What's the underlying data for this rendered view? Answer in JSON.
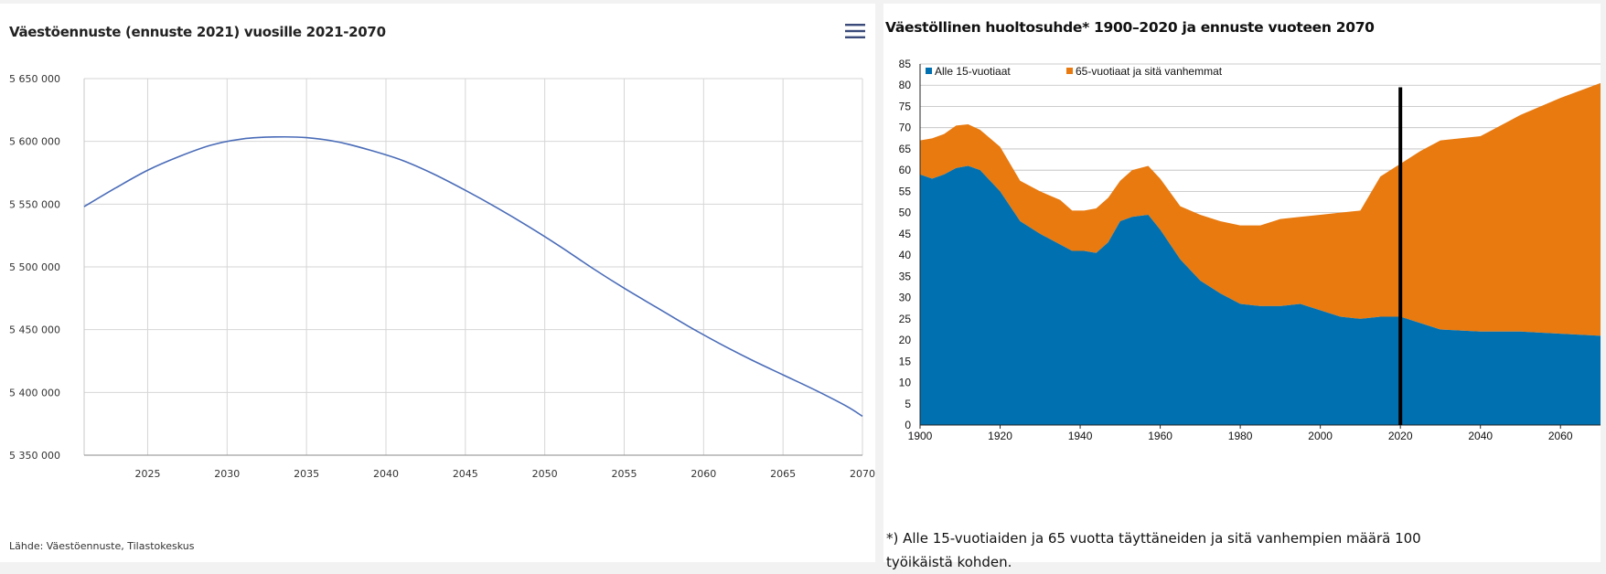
{
  "left_panel": {
    "title": "Väestöennuste (ennuste 2021) vuosille 2021-2070",
    "source": "Lähde: Väestöennuste, Tilastokeskus",
    "menu_icon": "hamburger-menu-icon"
  },
  "right_panel": {
    "title": "Väestöllinen huoltosuhde* 1900–2020 ja ennuste vuoteen 2070",
    "footnote_line1": "*) Alle 15-vuotiaiden ja 65 vuotta täyttäneiden ja sitä vanhempien määrä 100",
    "footnote_line2": "työikäistä kohden."
  },
  "chart_data": [
    {
      "type": "line",
      "title": "Väestöennuste (ennuste 2021) vuosille 2021-2070",
      "xlabel": "",
      "ylabel": "",
      "xlim": [
        2021,
        2070
      ],
      "ylim": [
        5350000,
        5650000
      ],
      "x_ticks": [
        2025,
        2030,
        2035,
        2040,
        2045,
        2050,
        2055,
        2060,
        2065,
        2070
      ],
      "y_ticks": [
        5350000,
        5400000,
        5450000,
        5500000,
        5550000,
        5600000,
        5650000
      ],
      "y_tick_labels": [
        "5 350 000",
        "5 400 000",
        "5 450 000",
        "5 500 000",
        "5 550 000",
        "5 600 000",
        "5 650 000"
      ],
      "grid": true,
      "line_color": "#4a6cb8",
      "series": [
        {
          "x": [
            2021,
            2023,
            2025,
            2027,
            2029,
            2031,
            2033,
            2035,
            2037,
            2039,
            2041,
            2043,
            2045,
            2047,
            2049,
            2051,
            2053,
            2055,
            2057,
            2059,
            2061,
            2063,
            2065,
            2067,
            2069,
            2070
          ],
          "values": [
            5548000,
            5563000,
            5577000,
            5588000,
            5597000,
            5602000,
            5603500,
            5603000,
            5599500,
            5593000,
            5585000,
            5574000,
            5561000,
            5547000,
            5532000,
            5516000,
            5499000,
            5483000,
            5468000,
            5453000,
            5439000,
            5426000,
            5414000,
            5402000,
            5389000,
            5381000
          ]
        }
      ]
    },
    {
      "type": "area",
      "title": "Väestöllinen huoltosuhde* 1900–2020 ja ennuste vuoteen 2070",
      "xlabel": "",
      "ylabel": "",
      "xlim": [
        1900,
        2070
      ],
      "ylim": [
        0,
        85
      ],
      "x_ticks": [
        1900,
        1920,
        1940,
        1960,
        1980,
        2000,
        2020,
        2040,
        2060
      ],
      "y_ticks": [
        0,
        5,
        10,
        15,
        20,
        25,
        30,
        35,
        40,
        45,
        50,
        55,
        60,
        65,
        70,
        75,
        80,
        85
      ],
      "legend_position": "top-left",
      "stacked": true,
      "vertical_marker_x": 2020,
      "series": [
        {
          "name": "Alle 15-vuotiaat",
          "color": "#0070b0",
          "x": [
            1900,
            1903,
            1906,
            1909,
            1912,
            1915,
            1920,
            1925,
            1930,
            1935,
            1938,
            1941,
            1944,
            1947,
            1950,
            1953,
            1957,
            1960,
            1965,
            1970,
            1975,
            1980,
            1985,
            1990,
            1995,
            2000,
            2005,
            2010,
            2015,
            2020,
            2025,
            2030,
            2040,
            2050,
            2060,
            2070
          ],
          "values": [
            59,
            58,
            59,
            60.5,
            61,
            60,
            55,
            48,
            45,
            42.5,
            41,
            41,
            40.5,
            43,
            48,
            49,
            49.5,
            46,
            39,
            34,
            31,
            28.5,
            28,
            28,
            28.5,
            27,
            25.5,
            25,
            25.5,
            25.5,
            24,
            22.5,
            22,
            22,
            21.5,
            21
          ]
        },
        {
          "name": "65-vuotiaat ja sitä vanhemmat",
          "color": "#e87a10",
          "x": [
            1900,
            1903,
            1906,
            1909,
            1912,
            1915,
            1920,
            1925,
            1930,
            1935,
            1938,
            1941,
            1944,
            1947,
            1950,
            1953,
            1957,
            1960,
            1965,
            1970,
            1975,
            1980,
            1985,
            1990,
            1995,
            2000,
            2005,
            2010,
            2015,
            2020,
            2025,
            2030,
            2040,
            2050,
            2060,
            2070
          ],
          "values": [
            8,
            9.5,
            9.5,
            10,
            9.8,
            9.5,
            10.5,
            9.5,
            10,
            10.5,
            9.5,
            9.5,
            10.5,
            10.5,
            9.5,
            11,
            11.5,
            12,
            12.5,
            15.5,
            17,
            18.5,
            19,
            20.5,
            20.5,
            22.5,
            24.5,
            25.5,
            33,
            36,
            40.5,
            44.5,
            46,
            51,
            55.5,
            59.5
          ]
        }
      ]
    }
  ]
}
